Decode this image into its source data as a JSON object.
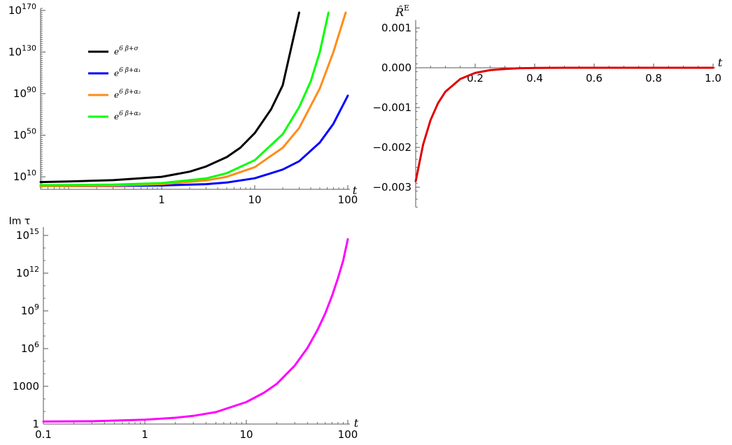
{
  "chart_data": [
    {
      "id": "top-left",
      "type": "line",
      "scale": "log-log",
      "xlabel": "t",
      "ylabel": "",
      "xlim": [
        0.05,
        100
      ],
      "ylim_log10": [
        -2,
        172
      ],
      "x_ticks": [
        {
          "v": 1,
          "label": "1"
        },
        {
          "v": 10,
          "label": "10"
        },
        {
          "v": 100,
          "label": "100"
        }
      ],
      "y_ticks": [
        {
          "v": 10,
          "base": "10",
          "exp": "10"
        },
        {
          "v": 50,
          "base": "10",
          "exp": "50"
        },
        {
          "v": 90,
          "base": "10",
          "exp": "90"
        },
        {
          "v": 130,
          "base": "10",
          "exp": "130"
        },
        {
          "v": 170,
          "base": "10",
          "exp": "170"
        }
      ],
      "legend": {
        "placement": "top-left",
        "entries": [
          {
            "base": "e",
            "sup": "6 β+σ",
            "color": "#000000"
          },
          {
            "base": "e",
            "sup": "6 β+α₁",
            "color": "#0000ff"
          },
          {
            "base": "e",
            "sup": "6 β+α₂",
            "color": "#ff8c1a"
          },
          {
            "base": "e",
            "sup": "6 β+α₃",
            "color": "#00ff00"
          }
        ]
      },
      "series": [
        {
          "color": "#000000",
          "x": [
            0.05,
            0.1,
            0.3,
            1,
            2,
            3,
            5,
            7,
            10,
            15,
            20,
            30
          ],
          "y_log10": [
            5,
            5.5,
            6.8,
            10,
            15,
            20,
            29,
            38,
            52,
            75,
            98,
            168
          ]
        },
        {
          "color": "#0000ff",
          "x": [
            0.05,
            0.1,
            0.3,
            1,
            3,
            5,
            10,
            20,
            30,
            50,
            70,
            100
          ],
          "y_log10": [
            1,
            1,
            1.2,
            1.7,
            3,
            4.5,
            8.6,
            17,
            25,
            43,
            61,
            88
          ]
        },
        {
          "color": "#ff8c1a",
          "x": [
            0.05,
            0.1,
            0.3,
            1,
            3,
            5,
            10,
            20,
            30,
            50,
            70,
            95
          ],
          "y_log10": [
            1,
            1.1,
            1.5,
            3,
            6.5,
            10,
            19.3,
            38,
            57,
            95,
            130,
            168
          ]
        },
        {
          "color": "#00ff00",
          "x": [
            0.05,
            0.1,
            0.3,
            1,
            3,
            5,
            10,
            20,
            30,
            40,
            50,
            62
          ],
          "y_log10": [
            2,
            2.1,
            2.5,
            4,
            8.5,
            13.5,
            26,
            51,
            77,
            102,
            130,
            168
          ]
        }
      ]
    },
    {
      "id": "top-right",
      "type": "line",
      "scale": "linear",
      "xlabel": "t",
      "ylabel": "R̂",
      "ylabel_sup": "E",
      "xlim": [
        0,
        1.0
      ],
      "ylim": [
        -0.0035,
        0.0012
      ],
      "x_ticks": [
        "0.2",
        "0.4",
        "0.6",
        "0.8",
        "1.0"
      ],
      "x_tick_values": [
        0.2,
        0.4,
        0.6,
        0.8,
        1.0
      ],
      "y_ticks": [
        "0.001",
        "0.000",
        "−0.001",
        "−0.002",
        "−0.003"
      ],
      "y_tick_values": [
        0.001,
        0.0,
        -0.001,
        -0.002,
        -0.003
      ],
      "series": [
        {
          "color": "#e00000",
          "x": [
            0.0,
            0.025,
            0.05,
            0.075,
            0.1,
            0.15,
            0.2,
            0.25,
            0.3,
            0.35,
            0.4,
            0.5,
            0.6,
            0.8,
            1.0
          ],
          "y": [
            -0.00285,
            -0.00193,
            -0.00131,
            -0.00089,
            -0.0006,
            -0.00028,
            -0.00013,
            -6e-05,
            -3e-05,
            -1e-05,
            -5e-06,
            0,
            0,
            0,
            0
          ]
        }
      ]
    },
    {
      "id": "bottom-left",
      "type": "line",
      "scale": "log-log",
      "xlabel": "t",
      "ylabel": "Im τ",
      "xlim": [
        0.1,
        100
      ],
      "ylim_log10": [
        0,
        15
      ],
      "x_ticks": [
        {
          "v": 0.1,
          "label": "0.1"
        },
        {
          "v": 1,
          "label": "1"
        },
        {
          "v": 10,
          "label": "10"
        },
        {
          "v": 100,
          "label": "100"
        }
      ],
      "y_ticks": [
        {
          "v": 0,
          "base": "1",
          "exp": ""
        },
        {
          "v": 3,
          "base": "1000",
          "exp": ""
        },
        {
          "v": 6,
          "base": "10",
          "exp": "6"
        },
        {
          "v": 9,
          "base": "10",
          "exp": "9"
        },
        {
          "v": 12,
          "base": "10",
          "exp": "12"
        },
        {
          "v": 15,
          "base": "10",
          "exp": "15"
        }
      ],
      "series": [
        {
          "color": "#ff00ff",
          "x": [
            0.1,
            0.3,
            1,
            2,
            3,
            5,
            10,
            15,
            20,
            30,
            40,
            50,
            60,
            70,
            80,
            90,
            100
          ],
          "y_log10": [
            0.2,
            0.22,
            0.35,
            0.5,
            0.65,
            0.95,
            1.75,
            2.5,
            3.2,
            4.65,
            6.05,
            7.45,
            8.8,
            10.2,
            11.6,
            13.0,
            14.7
          ]
        }
      ]
    }
  ]
}
